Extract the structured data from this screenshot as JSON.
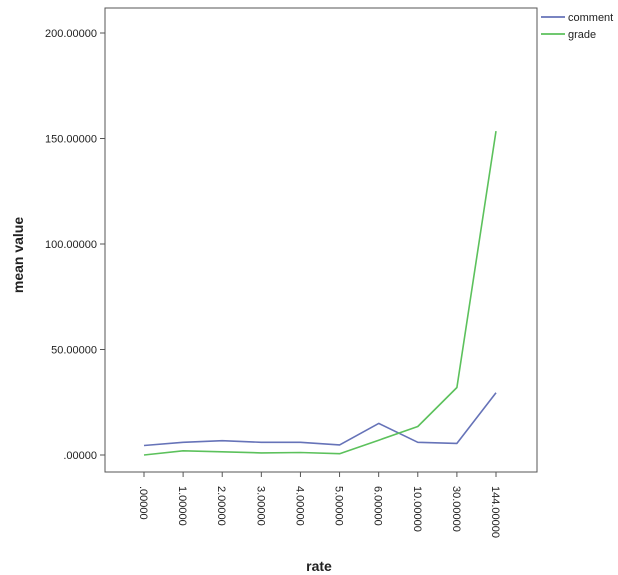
{
  "chart_data": {
    "type": "line",
    "title": "",
    "xlabel": "rate",
    "ylabel": "mean value",
    "categories": [
      ".00000",
      "1.00000",
      "2.00000",
      "3.00000",
      "4.00000",
      "5.00000",
      "6.00000",
      "10.00000",
      "30.00000",
      "144.00000"
    ],
    "yticks": [
      ".00000",
      "50.00000",
      "100.00000",
      "150.00000",
      "200.00000"
    ],
    "ylim": [
      -7,
      212
    ],
    "grid": false,
    "legend_position": "top-right",
    "series": [
      {
        "name": "comment",
        "color": "#6673b8",
        "values": [
          4.5,
          6.0,
          6.8,
          6.0,
          6.0,
          4.8,
          15.0,
          6.0,
          5.5,
          29.5
        ]
      },
      {
        "name": "grade",
        "color": "#5cc15c",
        "values": [
          0.0,
          2.0,
          1.5,
          1.0,
          1.2,
          0.6,
          7.0,
          13.5,
          32.0,
          153.5
        ]
      }
    ]
  }
}
